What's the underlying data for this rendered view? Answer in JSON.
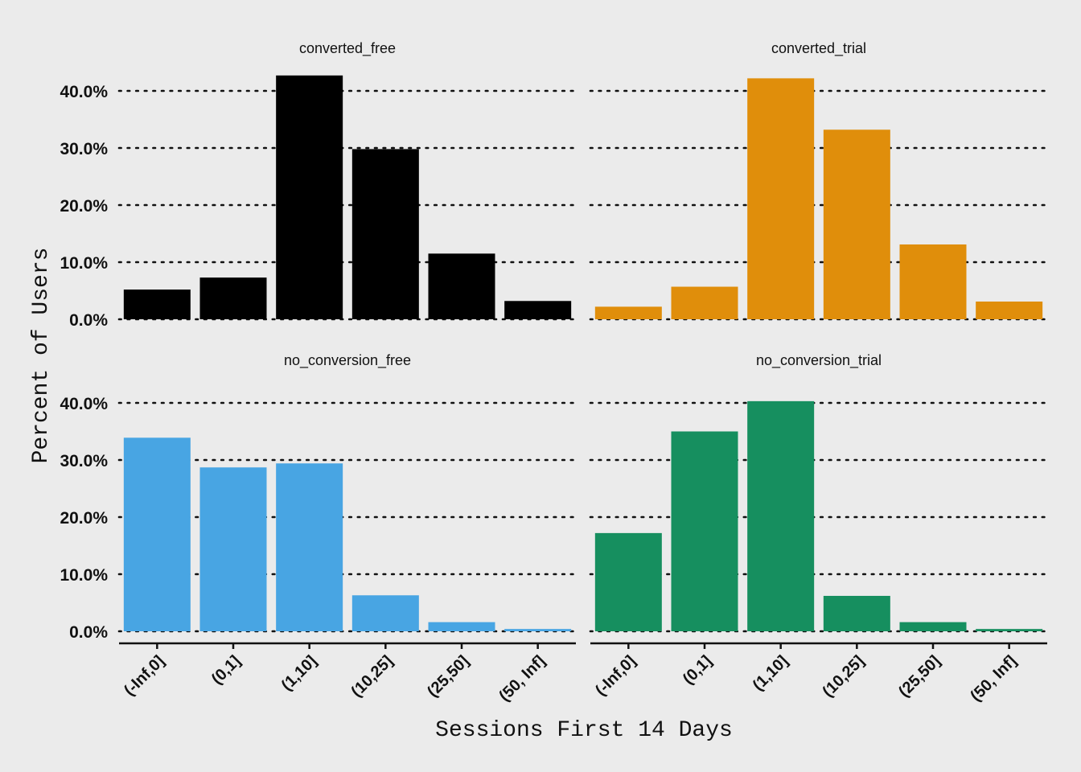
{
  "chart_data": {
    "type": "bar",
    "xlabel": "Sessions First 14 Days",
    "ylabel": "Percent of Users",
    "categories": [
      "(-Inf,0]",
      "(0,1]",
      "(1,10]",
      "(10,25]",
      "(25,50]",
      "(50, Inf]"
    ],
    "ylim": [
      0,
      42
    ],
    "yticks": [
      "0.0%",
      "10.0%",
      "20.0%",
      "30.0%",
      "40.0%"
    ],
    "grid": "horizontal dotted",
    "legend": "none",
    "panels": [
      {
        "name": "converted_free",
        "color": "#000000",
        "values": [
          5.2,
          7.3,
          42.7,
          29.8,
          11.5,
          3.2
        ]
      },
      {
        "name": "converted_trial",
        "color": "#E08E0B",
        "values": [
          2.2,
          5.7,
          42.2,
          33.2,
          13.1,
          3.1
        ]
      },
      {
        "name": "no_conversion_free",
        "color": "#48A5E3",
        "values": [
          33.9,
          28.7,
          29.4,
          6.3,
          1.6,
          0.4
        ]
      },
      {
        "name": "no_conversion_trial",
        "color": "#168F5F",
        "values": [
          17.2,
          35.0,
          40.3,
          6.2,
          1.6,
          0.4
        ]
      }
    ]
  }
}
